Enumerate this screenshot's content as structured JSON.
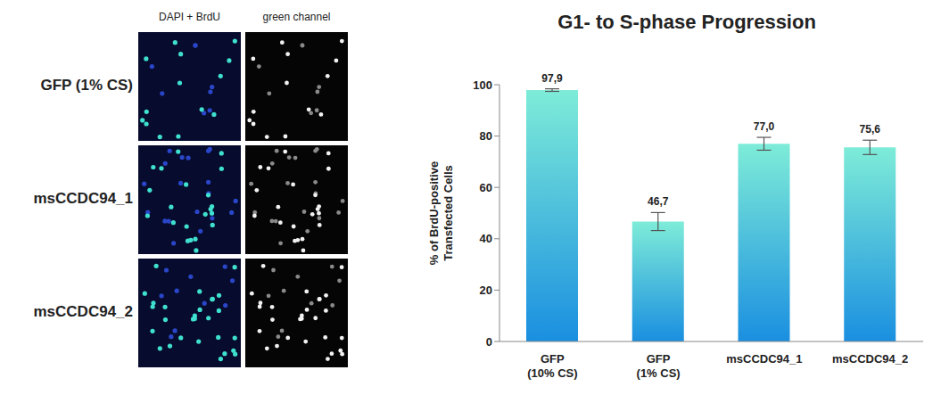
{
  "chart_data": {
    "type": "bar",
    "title": "G1- to S-phase Progression",
    "y_label": "% of BrdU-positive Transfected Cells",
    "categories": [
      "GFP (10% CS)",
      "GFP (1% CS)",
      "msCCDC94_1",
      "msCCDC94_2"
    ],
    "values": [
      97.9,
      46.7,
      77.0,
      75.6
    ],
    "value_labels": [
      "97,9",
      "46,7",
      "77,0",
      "75,6"
    ],
    "errors": [
      0.5,
      3.5,
      2.5,
      2.8
    ],
    "color": "#1a8fe0",
    "ylim": [
      0,
      100
    ],
    "yticks": [
      0,
      20,
      40,
      60,
      80,
      100
    ],
    "data_labels": true,
    "grid": false
  },
  "image_panel": {
    "column_labels": [
      "DAPI + BrdU",
      "green channel"
    ],
    "row_labels": [
      "GFP (1% CS)",
      "msCCDC94_1",
      "msCCDC94_2"
    ]
  }
}
